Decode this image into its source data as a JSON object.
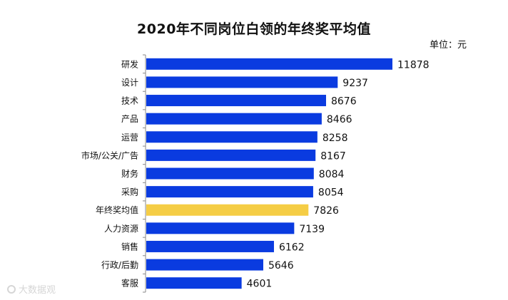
{
  "chart_data": {
    "type": "bar",
    "orientation": "horizontal",
    "title": "2020年不同岗位白领的年终奖平均值",
    "unit": "单位：元",
    "categories": [
      "研发",
      "设计",
      "技术",
      "产品",
      "运营",
      "市场/公关/广告",
      "财务",
      "采购",
      "年终奖均值",
      "人力资源",
      "销售",
      "行政/后勤",
      "客服"
    ],
    "values": [
      11878,
      9237,
      8676,
      8466,
      8258,
      8167,
      8084,
      8054,
      7826,
      7139,
      6162,
      5646,
      4601
    ],
    "highlight_category": "年终奖均值",
    "colors": {
      "bar": "#0a3be0",
      "highlight": "#f5cd45",
      "axis": "#888888"
    },
    "xlim": [
      0,
      12000
    ],
    "grid": false,
    "legend": "none"
  },
  "watermark": "大数据观"
}
